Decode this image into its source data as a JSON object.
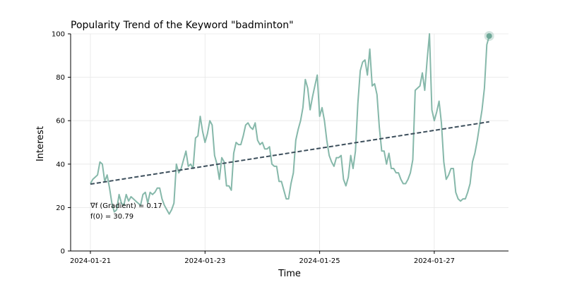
{
  "chart_data": {
    "type": "line",
    "title": "Popularity Trend of the Keyword \"badminton\"",
    "xlabel": "Time",
    "ylabel": "Interest",
    "ylim": [
      0,
      100
    ],
    "yticks": [
      0,
      20,
      40,
      60,
      80,
      100
    ],
    "xlim": [
      "2024-01-21T00:00",
      "2024-01-28T00:00"
    ],
    "xticks": [
      "2024-01-21",
      "2024-01-23",
      "2024-01-25",
      "2024-01-27"
    ],
    "grid": true,
    "colors": {
      "series": "#86b8aa",
      "trend": "#3d4f5c",
      "marker": "#6fa898"
    },
    "series": [
      {
        "points": [
          [
            "2024-01-21T00:00",
            31
          ],
          [
            "2024-01-21T01:00",
            33
          ],
          [
            "2024-01-21T02:00",
            34
          ],
          [
            "2024-01-21T03:00",
            35
          ],
          [
            "2024-01-21T04:00",
            41
          ],
          [
            "2024-01-21T05:00",
            40
          ],
          [
            "2024-01-21T06:00",
            32
          ],
          [
            "2024-01-21T07:00",
            35
          ],
          [
            "2024-01-21T08:00",
            29
          ],
          [
            "2024-01-21T09:00",
            22
          ],
          [
            "2024-01-21T10:00",
            18
          ],
          [
            "2024-01-21T11:00",
            19
          ],
          [
            "2024-01-21T12:00",
            26
          ],
          [
            "2024-01-21T13:00",
            22
          ],
          [
            "2024-01-21T14:00",
            21
          ],
          [
            "2024-01-21T15:00",
            26
          ],
          [
            "2024-01-21T16:00",
            23
          ],
          [
            "2024-01-21T17:00",
            25
          ],
          [
            "2024-01-21T18:00",
            24
          ],
          [
            "2024-01-21T19:00",
            23
          ],
          [
            "2024-01-21T20:00",
            22
          ],
          [
            "2024-01-21T21:00",
            21
          ],
          [
            "2024-01-21T22:00",
            26
          ],
          [
            "2024-01-21T23:00",
            27
          ],
          [
            "2024-01-22T00:00",
            22
          ],
          [
            "2024-01-22T01:00",
            27
          ],
          [
            "2024-01-22T02:00",
            26
          ],
          [
            "2024-01-22T03:00",
            27
          ],
          [
            "2024-01-22T04:00",
            29
          ],
          [
            "2024-01-22T05:00",
            29
          ],
          [
            "2024-01-22T06:00",
            24
          ],
          [
            "2024-01-22T07:00",
            21
          ],
          [
            "2024-01-22T08:00",
            19
          ],
          [
            "2024-01-22T09:00",
            17
          ],
          [
            "2024-01-22T10:00",
            19
          ],
          [
            "2024-01-22T11:00",
            22
          ],
          [
            "2024-01-22T12:00",
            40
          ],
          [
            "2024-01-22T13:00",
            36
          ],
          [
            "2024-01-22T14:00",
            38
          ],
          [
            "2024-01-22T15:00",
            42
          ],
          [
            "2024-01-22T16:00",
            46
          ],
          [
            "2024-01-22T17:00",
            39
          ],
          [
            "2024-01-22T18:00",
            40
          ],
          [
            "2024-01-22T19:00",
            38
          ],
          [
            "2024-01-22T20:00",
            52
          ],
          [
            "2024-01-22T21:00",
            53
          ],
          [
            "2024-01-22T22:00",
            62
          ],
          [
            "2024-01-22T23:00",
            55
          ],
          [
            "2024-01-23T00:00",
            50
          ],
          [
            "2024-01-23T01:00",
            54
          ],
          [
            "2024-01-23T02:00",
            60
          ],
          [
            "2024-01-23T03:00",
            58
          ],
          [
            "2024-01-23T04:00",
            44
          ],
          [
            "2024-01-23T05:00",
            40
          ],
          [
            "2024-01-23T06:00",
            33
          ],
          [
            "2024-01-23T07:00",
            43
          ],
          [
            "2024-01-23T08:00",
            41
          ],
          [
            "2024-01-23T09:00",
            30
          ],
          [
            "2024-01-23T10:00",
            30
          ],
          [
            "2024-01-23T11:00",
            28
          ],
          [
            "2024-01-23T12:00",
            45
          ],
          [
            "2024-01-23T13:00",
            50
          ],
          [
            "2024-01-23T14:00",
            49
          ],
          [
            "2024-01-23T15:00",
            49
          ],
          [
            "2024-01-23T16:00",
            53
          ],
          [
            "2024-01-23T17:00",
            58
          ],
          [
            "2024-01-23T18:00",
            59
          ],
          [
            "2024-01-23T19:00",
            57
          ],
          [
            "2024-01-23T20:00",
            56
          ],
          [
            "2024-01-23T21:00",
            59
          ],
          [
            "2024-01-23T22:00",
            51
          ],
          [
            "2024-01-23T23:00",
            49
          ],
          [
            "2024-01-24T00:00",
            50
          ],
          [
            "2024-01-24T01:00",
            47
          ],
          [
            "2024-01-24T02:00",
            47
          ],
          [
            "2024-01-24T03:00",
            48
          ],
          [
            "2024-01-24T04:00",
            40
          ],
          [
            "2024-01-24T05:00",
            39
          ],
          [
            "2024-01-24T06:00",
            39
          ],
          [
            "2024-01-24T07:00",
            32
          ],
          [
            "2024-01-24T08:00",
            32
          ],
          [
            "2024-01-24T09:00",
            28
          ],
          [
            "2024-01-24T10:00",
            24
          ],
          [
            "2024-01-24T11:00",
            24
          ],
          [
            "2024-01-24T12:00",
            31
          ],
          [
            "2024-01-24T13:00",
            36
          ],
          [
            "2024-01-24T14:00",
            51
          ],
          [
            "2024-01-24T15:00",
            56
          ],
          [
            "2024-01-24T16:00",
            60
          ],
          [
            "2024-01-24T17:00",
            66
          ],
          [
            "2024-01-24T18:00",
            79
          ],
          [
            "2024-01-24T19:00",
            75
          ],
          [
            "2024-01-24T20:00",
            65
          ],
          [
            "2024-01-24T21:00",
            71
          ],
          [
            "2024-01-24T22:00",
            76
          ],
          [
            "2024-01-24T23:00",
            81
          ],
          [
            "2024-01-25T00:00",
            62
          ],
          [
            "2024-01-25T01:00",
            66
          ],
          [
            "2024-01-25T02:00",
            60
          ],
          [
            "2024-01-25T03:00",
            51
          ],
          [
            "2024-01-25T04:00",
            44
          ],
          [
            "2024-01-25T05:00",
            41
          ],
          [
            "2024-01-25T06:00",
            39
          ],
          [
            "2024-01-25T07:00",
            43
          ],
          [
            "2024-01-25T08:00",
            43
          ],
          [
            "2024-01-25T09:00",
            44
          ],
          [
            "2024-01-25T10:00",
            33
          ],
          [
            "2024-01-25T11:00",
            30
          ],
          [
            "2024-01-25T12:00",
            34
          ],
          [
            "2024-01-25T13:00",
            44
          ],
          [
            "2024-01-25T14:00",
            38
          ],
          [
            "2024-01-25T15:00",
            46
          ],
          [
            "2024-01-25T16:00",
            68
          ],
          [
            "2024-01-25T17:00",
            83
          ],
          [
            "2024-01-25T18:00",
            87
          ],
          [
            "2024-01-25T19:00",
            88
          ],
          [
            "2024-01-25T20:00",
            81
          ],
          [
            "2024-01-25T21:00",
            93
          ],
          [
            "2024-01-25T22:00",
            76
          ],
          [
            "2024-01-25T23:00",
            77
          ],
          [
            "2024-01-26T00:00",
            72
          ],
          [
            "2024-01-26T01:00",
            57
          ],
          [
            "2024-01-26T02:00",
            46
          ],
          [
            "2024-01-26T03:00",
            46
          ],
          [
            "2024-01-26T04:00",
            40
          ],
          [
            "2024-01-26T05:00",
            45
          ],
          [
            "2024-01-26T06:00",
            38
          ],
          [
            "2024-01-26T07:00",
            38
          ],
          [
            "2024-01-26T08:00",
            36
          ],
          [
            "2024-01-26T09:00",
            36
          ],
          [
            "2024-01-26T10:00",
            33
          ],
          [
            "2024-01-26T11:00",
            31
          ],
          [
            "2024-01-26T12:00",
            31
          ],
          [
            "2024-01-26T13:00",
            33
          ],
          [
            "2024-01-26T14:00",
            36
          ],
          [
            "2024-01-26T15:00",
            42
          ],
          [
            "2024-01-26T16:00",
            74
          ],
          [
            "2024-01-26T17:00",
            75
          ],
          [
            "2024-01-26T18:00",
            76
          ],
          [
            "2024-01-26T19:00",
            82
          ],
          [
            "2024-01-26T20:00",
            74
          ],
          [
            "2024-01-26T21:00",
            88
          ],
          [
            "2024-01-26T22:00",
            100
          ],
          [
            "2024-01-26T23:00",
            65
          ],
          [
            "2024-01-27T00:00",
            60
          ],
          [
            "2024-01-27T01:00",
            64
          ],
          [
            "2024-01-27T02:00",
            69
          ],
          [
            "2024-01-27T03:00",
            59
          ],
          [
            "2024-01-27T04:00",
            41
          ],
          [
            "2024-01-27T05:00",
            33
          ],
          [
            "2024-01-27T06:00",
            35
          ],
          [
            "2024-01-27T07:00",
            38
          ],
          [
            "2024-01-27T08:00",
            38
          ],
          [
            "2024-01-27T09:00",
            27
          ],
          [
            "2024-01-27T10:00",
            24
          ],
          [
            "2024-01-27T11:00",
            23
          ],
          [
            "2024-01-27T12:00",
            24
          ],
          [
            "2024-01-27T13:00",
            24
          ],
          [
            "2024-01-27T14:00",
            27
          ],
          [
            "2024-01-27T15:00",
            31
          ],
          [
            "2024-01-27T16:00",
            41
          ],
          [
            "2024-01-27T17:00",
            45
          ],
          [
            "2024-01-27T18:00",
            51
          ],
          [
            "2024-01-27T19:00",
            58
          ],
          [
            "2024-01-27T20:00",
            65
          ],
          [
            "2024-01-27T21:00",
            75
          ],
          [
            "2024-01-27T22:00",
            95
          ],
          [
            "2024-01-27T23:00",
            99
          ]
        ]
      }
    ],
    "trend_line": {
      "points": [
        [
          "2024-01-21T00:00",
          30.79
        ],
        [
          "2024-01-27T23:00",
          59.5
        ]
      ]
    },
    "highlight_point": [
      "2024-01-27T23:00",
      99
    ],
    "annotations": [
      "∇f (Gradient) = 0.17",
      "f(0) = 30.79"
    ]
  }
}
